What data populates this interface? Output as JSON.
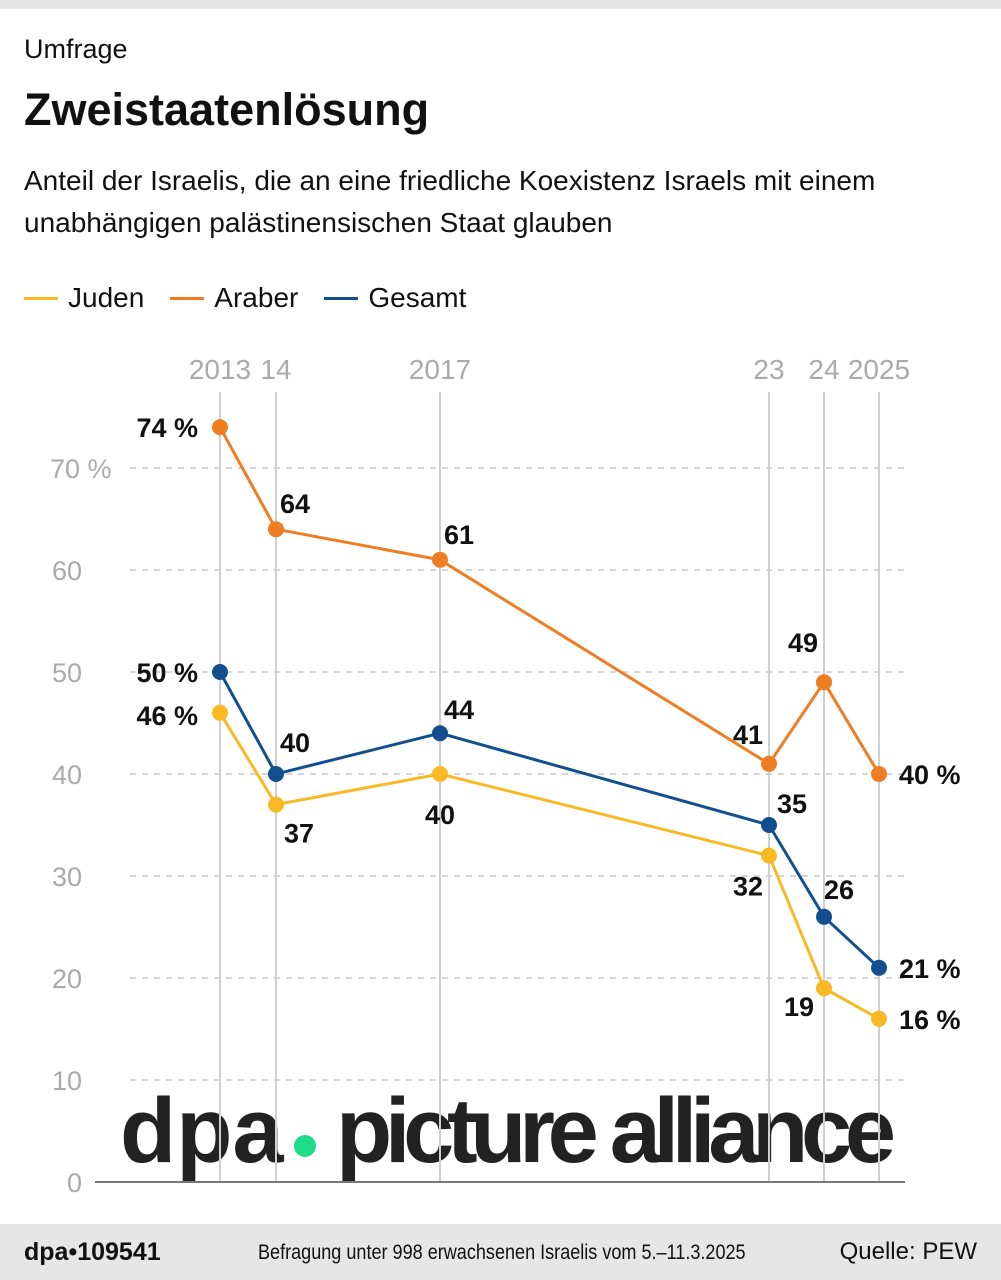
{
  "kicker": "Umfrage",
  "title": "Zweistaatenlösung",
  "subtitle": "Anteil der Israelis, die an eine friedliche Koexistenz Israels mit einem unabhängigen palästinensischen Staat glauben",
  "watermark": "dpa • picture alliance",
  "footer": {
    "id": "dpa•109541",
    "note": "Befragung unter 998 erwachsenen Israelis vom 5.–11.3.2025",
    "source": "Quelle: PEW"
  },
  "chart_data": {
    "type": "line",
    "x": [
      2013,
      2014,
      2017,
      2023,
      2024,
      2025
    ],
    "x_tick_labels": [
      "2013",
      "14",
      "2017",
      "23",
      "24",
      "2025"
    ],
    "y_tick_labels": [
      "0",
      "10",
      "20",
      "30",
      "40",
      "50",
      "60",
      "70 %"
    ],
    "y_ticks": [
      0,
      10,
      20,
      30,
      40,
      50,
      60,
      70
    ],
    "ylim": [
      0,
      75
    ],
    "grid": true,
    "legend_position": "top-left",
    "series": [
      {
        "name": "Juden",
        "color": "#f9b925",
        "values": [
          46,
          37,
          40,
          32,
          19,
          16
        ],
        "labels": [
          "46 %",
          "37",
          "40",
          "32",
          "19",
          "16 %"
        ]
      },
      {
        "name": "Araber",
        "color": "#ef7d22",
        "values": [
          74,
          64,
          61,
          41,
          49,
          40
        ],
        "labels": [
          "74 %",
          "64",
          "61",
          "41",
          "49",
          "40 %"
        ]
      },
      {
        "name": "Gesamt",
        "color": "#134f8f",
        "values": [
          50,
          40,
          44,
          35,
          26,
          21
        ],
        "labels": [
          "50 %",
          "40",
          "44",
          "35",
          "26",
          "21 %"
        ]
      }
    ]
  }
}
